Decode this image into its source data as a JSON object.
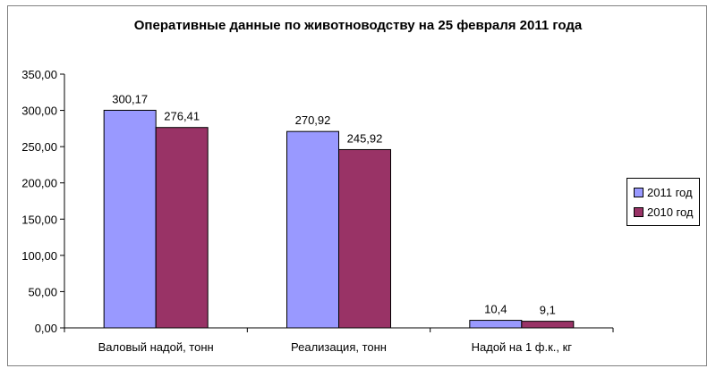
{
  "chart_data": {
    "type": "bar",
    "title": "Оперативные данные по животноводству на 25 февраля 2011 года",
    "categories": [
      "Валовый надой, тонн",
      "Реализация, тонн",
      "Надой на 1 ф.к., кг"
    ],
    "series": [
      {
        "name": "2011 год",
        "values": [
          300.17,
          270.92,
          10.4
        ],
        "labels": [
          "300,17",
          "270,92",
          "10,4"
        ],
        "color": "#9999ff"
      },
      {
        "name": "2010 год",
        "values": [
          276.41,
          245.92,
          9.1
        ],
        "labels": [
          "276,41",
          "245,92",
          "9,1"
        ],
        "color": "#993366"
      }
    ],
    "ylim": [
      0,
      350
    ],
    "yticks": [
      "0,00",
      "50,00",
      "100,00",
      "150,00",
      "200,00",
      "250,00",
      "300,00",
      "350,00"
    ],
    "legend": "right",
    "grid": false
  }
}
